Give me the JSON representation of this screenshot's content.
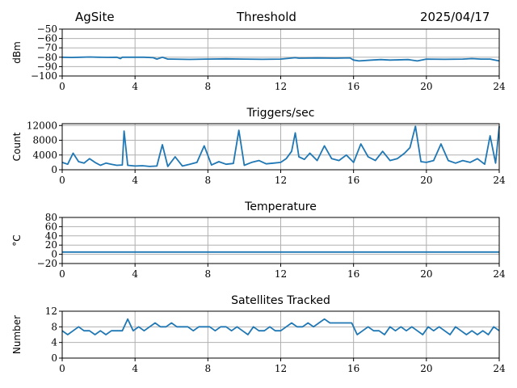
{
  "header": {
    "site": "AgSite",
    "title": "Threshold",
    "date": "2025/04/17"
  },
  "style": {
    "line_color": "#1f77b4",
    "grid_color": "#b0b0b0"
  },
  "chart_data": [
    {
      "type": "line",
      "title": "",
      "ylabel": "dBm",
      "xlim": [
        0,
        24
      ],
      "ylim": [
        -100,
        -50
      ],
      "xticks": [
        0,
        4,
        8,
        12,
        16,
        20,
        24
      ],
      "yticks": [
        -100,
        -90,
        -80,
        -70,
        -60,
        -50
      ],
      "ytick_labels": [
        "−100",
        "−90",
        "−80",
        "−70",
        "−60",
        "−50"
      ],
      "grid": true,
      "series": [
        {
          "x": [
            0,
            0.5,
            1,
            1.5,
            2,
            2.5,
            3,
            3.2,
            3.3,
            3.4,
            3.6,
            4,
            4.5,
            5,
            5.2,
            5.5,
            5.8,
            6,
            7,
            8,
            9,
            10,
            11,
            12,
            12.8,
            13,
            14,
            15,
            15.8,
            16,
            16.3,
            17,
            17.5,
            18,
            19,
            19.5,
            20,
            21,
            22,
            22.5,
            23,
            23.5,
            24
          ],
          "y": [
            -80,
            -80.3,
            -80,
            -79.7,
            -80,
            -80.2,
            -80,
            -81.5,
            -80,
            -80,
            -80,
            -80,
            -80,
            -80.5,
            -82,
            -80,
            -82,
            -82,
            -82.3,
            -82,
            -81.7,
            -82,
            -82.2,
            -82,
            -80.5,
            -81,
            -80.8,
            -81,
            -80.7,
            -83,
            -84,
            -83,
            -82.5,
            -83,
            -82.5,
            -84,
            -82,
            -82.2,
            -82,
            -81.5,
            -82,
            -82,
            -84
          ]
        }
      ]
    },
    {
      "type": "line",
      "title": "Triggers/sec",
      "ylabel": "Count",
      "xlim": [
        0,
        24
      ],
      "ylim": [
        0,
        12500
      ],
      "xticks": [
        0,
        4,
        8,
        12,
        16,
        20,
        24
      ],
      "yticks": [
        0,
        4000,
        8000,
        12000
      ],
      "ytick_labels": [
        "0",
        "4000",
        "8000",
        "12000"
      ],
      "grid": true,
      "series": [
        {
          "x": [
            0,
            0.3,
            0.6,
            0.9,
            1.2,
            1.5,
            1.8,
            2.1,
            2.4,
            2.7,
            3.0,
            3.3,
            3.4,
            3.6,
            4.0,
            4.4,
            4.8,
            5.2,
            5.5,
            5.8,
            6.2,
            6.6,
            7.0,
            7.4,
            7.8,
            8.2,
            8.6,
            9.0,
            9.4,
            9.7,
            10.0,
            10.4,
            10.8,
            11.2,
            11.6,
            12.0,
            12.3,
            12.6,
            12.8,
            13.0,
            13.3,
            13.6,
            14.0,
            14.4,
            14.8,
            15.2,
            15.6,
            16.0,
            16.4,
            16.8,
            17.2,
            17.6,
            18.0,
            18.4,
            18.8,
            19.1,
            19.4,
            19.7,
            20.0,
            20.4,
            20.8,
            21.2,
            21.6,
            22.0,
            22.4,
            22.8,
            23.2,
            23.5,
            23.8,
            24.0
          ],
          "y": [
            2000,
            1500,
            4500,
            2200,
            1800,
            3000,
            2000,
            1200,
            1800,
            1500,
            1200,
            1300,
            10500,
            1200,
            1000,
            1100,
            900,
            1000,
            6800,
            900,
            3500,
            1000,
            1500,
            2000,
            6500,
            1300,
            2200,
            1500,
            1700,
            10700,
            1200,
            2000,
            2500,
            1600,
            1800,
            2000,
            3000,
            5000,
            10000,
            3500,
            2800,
            4500,
            2500,
            6500,
            3000,
            2500,
            4000,
            2000,
            7000,
            3500,
            2500,
            5000,
            2500,
            3000,
            4500,
            6000,
            11800,
            2200,
            2000,
            2500,
            7000,
            2500,
            1800,
            2500,
            2000,
            3000,
            1500,
            9200,
            1800,
            11800
          ]
        }
      ]
    },
    {
      "type": "line",
      "title": "Temperature",
      "ylabel": "°C",
      "xlim": [
        0,
        24
      ],
      "ylim": [
        -20,
        80
      ],
      "xticks": [
        0,
        4,
        8,
        12,
        16,
        20,
        24
      ],
      "yticks": [
        -20,
        0,
        20,
        40,
        60,
        80
      ],
      "ytick_labels": [
        "−20",
        "0",
        "20",
        "40",
        "60",
        "80"
      ],
      "grid": true,
      "series": [
        {
          "x": [
            0,
            24
          ],
          "y": [
            5,
            5
          ]
        }
      ]
    },
    {
      "type": "line",
      "title": "Satellites Tracked",
      "ylabel": "Number",
      "xlim": [
        0,
        24
      ],
      "ylim": [
        0,
        12
      ],
      "xticks": [
        0,
        4,
        8,
        12,
        16,
        20,
        24
      ],
      "yticks": [
        0,
        4,
        8,
        12
      ],
      "ytick_labels": [
        "0",
        "4",
        "8",
        "12"
      ],
      "grid": true,
      "series": [
        {
          "x": [
            0,
            0.3,
            0.6,
            0.9,
            1.2,
            1.5,
            1.8,
            2.1,
            2.4,
            2.7,
            3.0,
            3.3,
            3.6,
            3.9,
            4.2,
            4.5,
            4.8,
            5.1,
            5.4,
            5.7,
            6.0,
            6.3,
            6.6,
            6.9,
            7.2,
            7.5,
            7.8,
            8.1,
            8.4,
            8.7,
            9.0,
            9.3,
            9.6,
            9.9,
            10.2,
            10.5,
            10.8,
            11.1,
            11.4,
            11.7,
            12.0,
            12.3,
            12.6,
            12.9,
            13.2,
            13.5,
            13.8,
            14.1,
            14.4,
            14.7,
            15.0,
            15.3,
            15.6,
            15.9,
            16.2,
            16.5,
            16.8,
            17.1,
            17.4,
            17.7,
            18.0,
            18.3,
            18.6,
            18.9,
            19.2,
            19.5,
            19.8,
            20.1,
            20.4,
            20.7,
            21.0,
            21.3,
            21.6,
            21.9,
            22.2,
            22.5,
            22.8,
            23.1,
            23.4,
            23.7,
            24.0
          ],
          "y": [
            7,
            6,
            7,
            8,
            7,
            7,
            6,
            7,
            6,
            7,
            7,
            7,
            10,
            7,
            8,
            7,
            8,
            9,
            8,
            8,
            9,
            8,
            8,
            8,
            7,
            8,
            8,
            8,
            7,
            8,
            8,
            7,
            8,
            7,
            6,
            8,
            7,
            7,
            8,
            7,
            7,
            8,
            9,
            8,
            8,
            9,
            8,
            9,
            10,
            9,
            9,
            9,
            9,
            9,
            6,
            7,
            8,
            7,
            7,
            6,
            8,
            7,
            8,
            7,
            8,
            7,
            6,
            8,
            7,
            8,
            7,
            6,
            8,
            7,
            6,
            7,
            6,
            7,
            6,
            8,
            7
          ]
        }
      ]
    }
  ]
}
